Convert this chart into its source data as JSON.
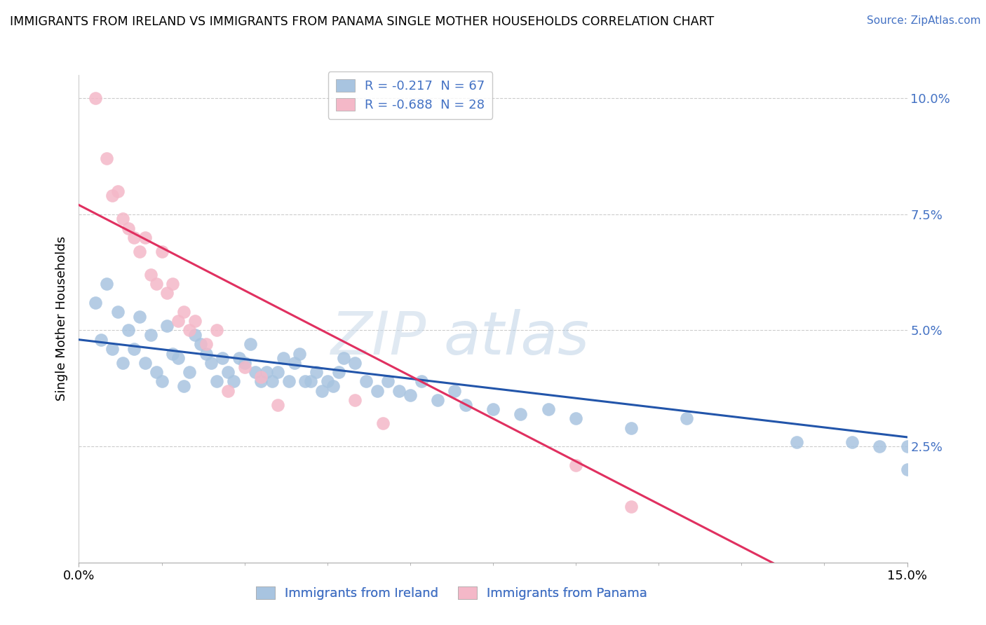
{
  "title": "IMMIGRANTS FROM IRELAND VS IMMIGRANTS FROM PANAMA SINGLE MOTHER HOUSEHOLDS CORRELATION CHART",
  "source": "Source: ZipAtlas.com",
  "ylabel": "Single Mother Households",
  "xmin": 0.0,
  "xmax": 0.15,
  "ymin": 0.0,
  "ymax": 0.105,
  "yticks": [
    0.025,
    0.05,
    0.075,
    0.1
  ],
  "ytick_labels": [
    "2.5%",
    "5.0%",
    "7.5%",
    "10.0%"
  ],
  "xtick_labels": [
    "0.0%",
    "15.0%"
  ],
  "ireland_R": -0.217,
  "ireland_N": 67,
  "panama_R": -0.688,
  "panama_N": 28,
  "ireland_color": "#a8c4e0",
  "panama_color": "#f4b8c8",
  "ireland_line_color": "#2255aa",
  "panama_line_color": "#e03060",
  "legend_ireland": "Immigrants from Ireland",
  "legend_panama": "Immigrants from Panama",
  "watermark_zip": "ZIP",
  "watermark_atlas": "atlas",
  "ireland_x": [
    0.003,
    0.004,
    0.005,
    0.006,
    0.007,
    0.008,
    0.009,
    0.01,
    0.011,
    0.012,
    0.013,
    0.014,
    0.015,
    0.016,
    0.017,
    0.018,
    0.019,
    0.02,
    0.021,
    0.022,
    0.023,
    0.024,
    0.025,
    0.026,
    0.027,
    0.028,
    0.029,
    0.03,
    0.031,
    0.032,
    0.033,
    0.034,
    0.035,
    0.036,
    0.037,
    0.038,
    0.039,
    0.04,
    0.041,
    0.042,
    0.043,
    0.044,
    0.045,
    0.046,
    0.047,
    0.048,
    0.05,
    0.052,
    0.054,
    0.056,
    0.058,
    0.06,
    0.062,
    0.065,
    0.068,
    0.07,
    0.075,
    0.08,
    0.085,
    0.09,
    0.1,
    0.11,
    0.13,
    0.14,
    0.145,
    0.15,
    0.15
  ],
  "ireland_y": [
    0.056,
    0.048,
    0.06,
    0.046,
    0.054,
    0.043,
    0.05,
    0.046,
    0.053,
    0.043,
    0.049,
    0.041,
    0.039,
    0.051,
    0.045,
    0.044,
    0.038,
    0.041,
    0.049,
    0.047,
    0.045,
    0.043,
    0.039,
    0.044,
    0.041,
    0.039,
    0.044,
    0.043,
    0.047,
    0.041,
    0.039,
    0.041,
    0.039,
    0.041,
    0.044,
    0.039,
    0.043,
    0.045,
    0.039,
    0.039,
    0.041,
    0.037,
    0.039,
    0.038,
    0.041,
    0.044,
    0.043,
    0.039,
    0.037,
    0.039,
    0.037,
    0.036,
    0.039,
    0.035,
    0.037,
    0.034,
    0.033,
    0.032,
    0.033,
    0.031,
    0.029,
    0.031,
    0.026,
    0.026,
    0.025,
    0.025,
    0.02
  ],
  "panama_x": [
    0.003,
    0.005,
    0.006,
    0.007,
    0.008,
    0.009,
    0.01,
    0.011,
    0.012,
    0.013,
    0.014,
    0.015,
    0.016,
    0.017,
    0.018,
    0.019,
    0.02,
    0.021,
    0.023,
    0.025,
    0.027,
    0.03,
    0.033,
    0.036,
    0.05,
    0.055,
    0.09,
    0.1
  ],
  "panama_y": [
    0.1,
    0.087,
    0.079,
    0.08,
    0.074,
    0.072,
    0.07,
    0.067,
    0.07,
    0.062,
    0.06,
    0.067,
    0.058,
    0.06,
    0.052,
    0.054,
    0.05,
    0.052,
    0.047,
    0.05,
    0.037,
    0.042,
    0.04,
    0.034,
    0.035,
    0.03,
    0.021,
    0.012
  ]
}
